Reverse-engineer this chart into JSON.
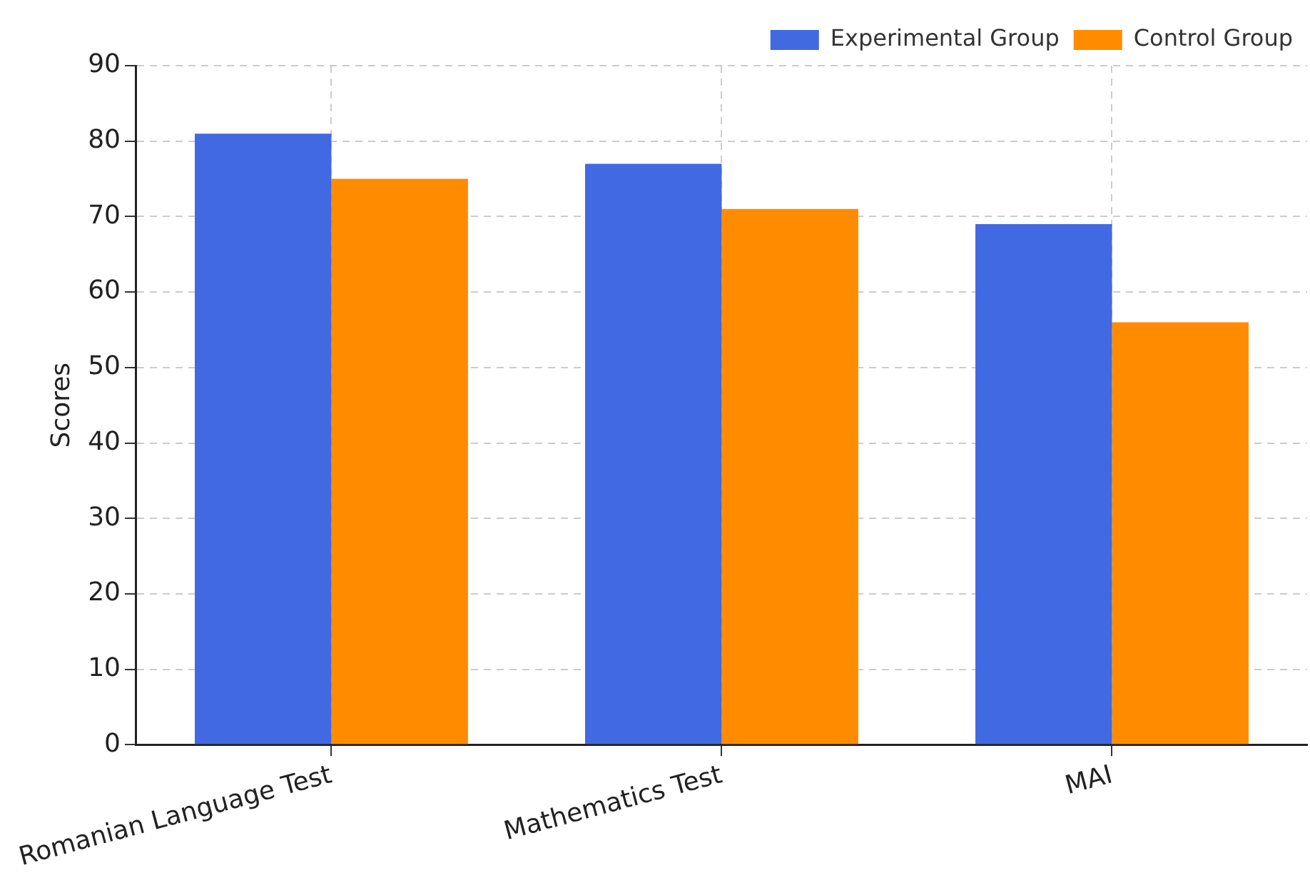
{
  "chart_data": {
    "type": "bar",
    "ylabel": "Scores",
    "categories": [
      "Romanian Language Test",
      "Mathematics Test",
      "MAI"
    ],
    "series": [
      {
        "name": "Experimental Group",
        "color": "#4169e1",
        "values": [
          81,
          77,
          69
        ]
      },
      {
        "name": "Control Group",
        "color": "#ff8c00",
        "values": [
          75,
          71,
          56
        ]
      }
    ],
    "ylim": [
      0,
      90
    ],
    "yticks": [
      0,
      10,
      20,
      30,
      40,
      50,
      60,
      70,
      80,
      90
    ],
    "grid": true,
    "legend": "top right"
  }
}
